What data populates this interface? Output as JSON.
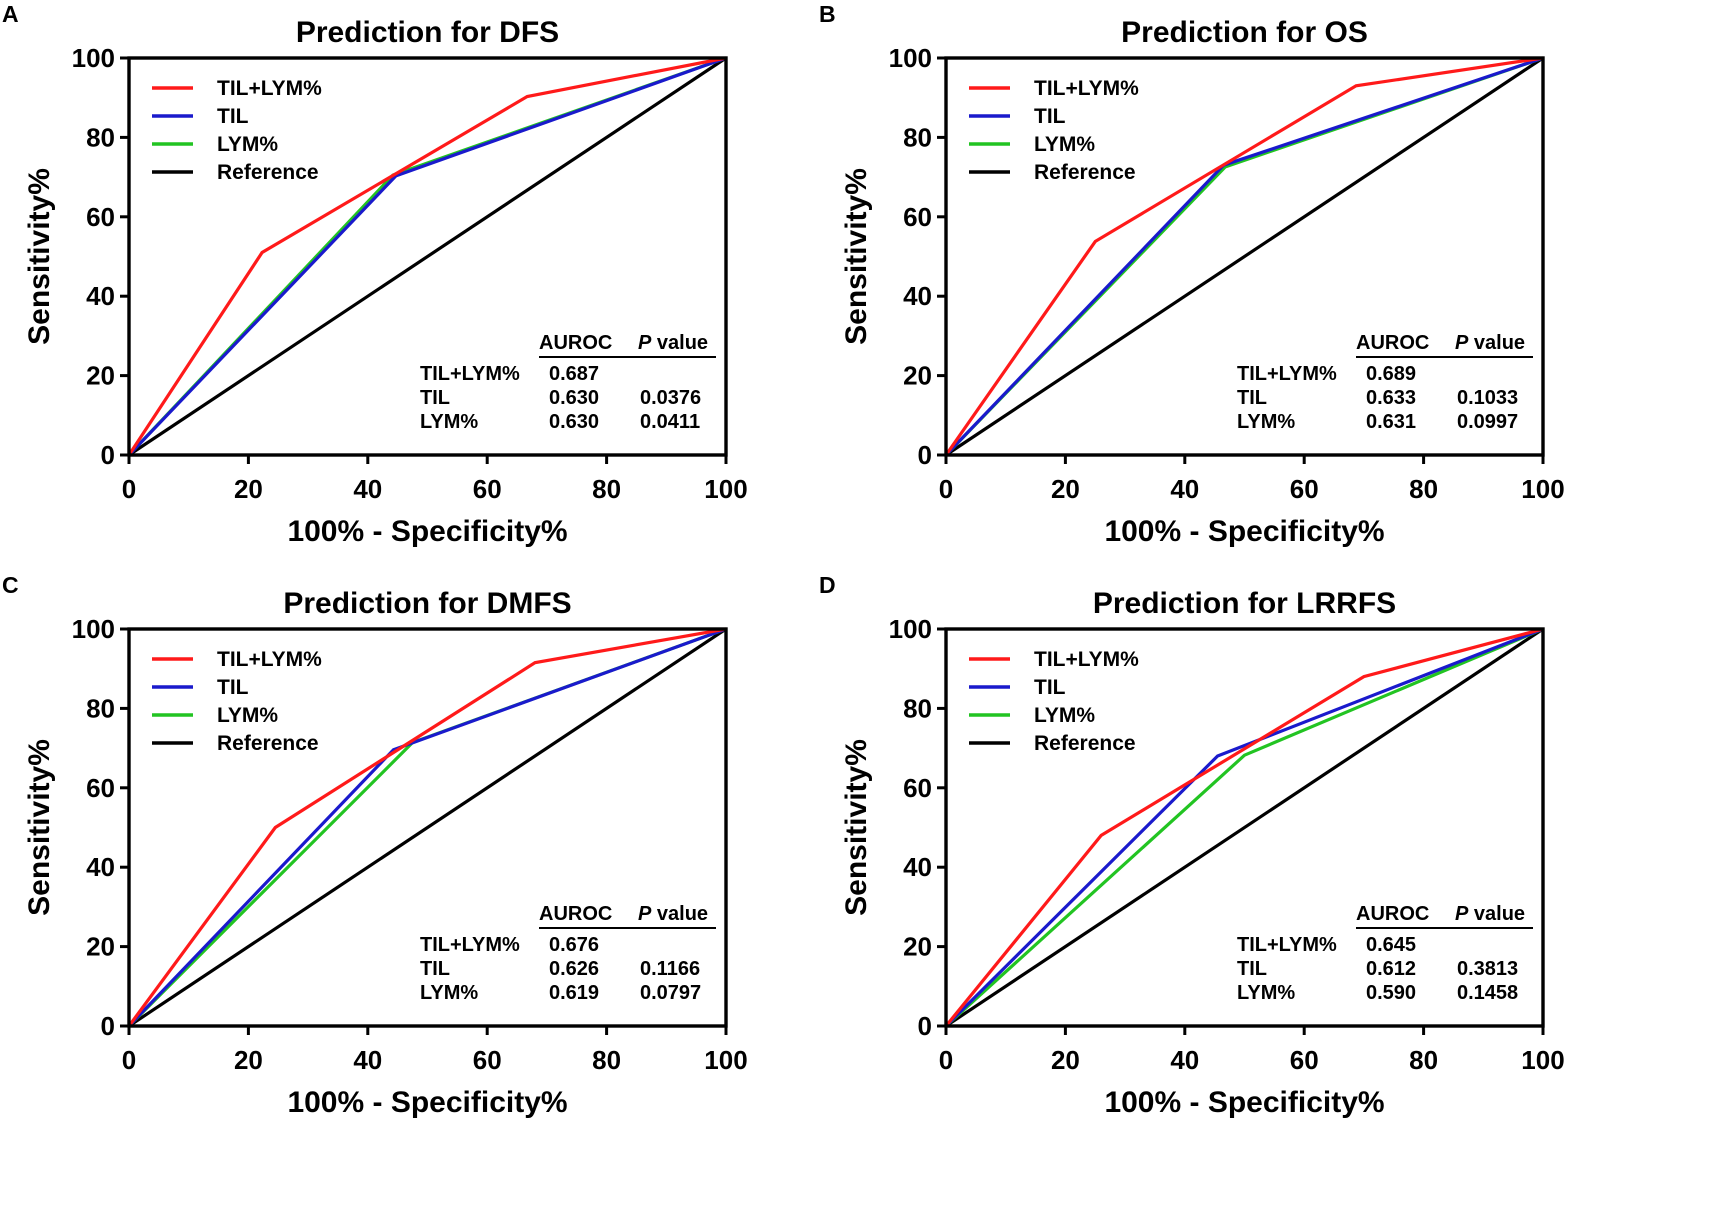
{
  "figure": {
    "x_tick_labels": [
      "0",
      "20",
      "40",
      "60",
      "80",
      "100"
    ],
    "y_tick_labels": [
      "0",
      "20",
      "40",
      "60",
      "80",
      "100"
    ]
  },
  "chart_data": [
    {
      "type": "line",
      "panel_label": "A",
      "title": "Prediction for DFS",
      "xlabel": "100% - Specificity%",
      "ylabel": "Sensitivity%",
      "xlim": [
        0,
        100
      ],
      "ylim": [
        0,
        100
      ],
      "grid": false,
      "legend_position": "top-left",
      "series": [
        {
          "name": "TIL+LYM%",
          "color": "#ff1a1a",
          "x": [
            0,
            22.3,
            66.7,
            100
          ],
          "y": [
            0,
            51,
            90.3,
            100
          ]
        },
        {
          "name": "TIL",
          "color": "#1a1acc",
          "x": [
            0,
            44.7,
            100
          ],
          "y": [
            0,
            70.3,
            100
          ]
        },
        {
          "name": "LYM%",
          "color": "#22c422",
          "x": [
            0,
            44.2,
            100
          ],
          "y": [
            0,
            70.5,
            100
          ]
        },
        {
          "name": "Reference",
          "color": "#000000",
          "x": [
            0,
            100
          ],
          "y": [
            0,
            100
          ]
        }
      ],
      "stats_table": {
        "headers": {
          "auroc": "AUROC",
          "p_italic": "P",
          "p_rest": " value"
        },
        "rows": [
          {
            "label": "TIL+LYM%",
            "auroc": "0.687",
            "p": ""
          },
          {
            "label": "TIL",
            "auroc": "0.630",
            "p": "0.0376"
          },
          {
            "label": "LYM%",
            "auroc": "0.630",
            "p": "0.0411"
          }
        ]
      }
    },
    {
      "type": "line",
      "panel_label": "B",
      "title": "Prediction for OS",
      "xlabel": "100% - Specificity%",
      "ylabel": "Sensitivity%",
      "xlim": [
        0,
        100
      ],
      "ylim": [
        0,
        100
      ],
      "grid": false,
      "legend_position": "top-left",
      "series": [
        {
          "name": "TIL+LYM%",
          "color": "#ff1a1a",
          "x": [
            0,
            25,
            68.7,
            100
          ],
          "y": [
            0,
            53.8,
            93,
            100
          ]
        },
        {
          "name": "TIL",
          "color": "#1a1acc",
          "x": [
            0,
            46.5,
            100
          ],
          "y": [
            0,
            73,
            100
          ]
        },
        {
          "name": "LYM%",
          "color": "#22c422",
          "x": [
            0,
            46.8,
            100
          ],
          "y": [
            0,
            72.6,
            100
          ]
        },
        {
          "name": "Reference",
          "color": "#000000",
          "x": [
            0,
            100
          ],
          "y": [
            0,
            100
          ]
        }
      ],
      "stats_table": {
        "headers": {
          "auroc": "AUROC",
          "p_italic": "P",
          "p_rest": " value"
        },
        "rows": [
          {
            "label": "TIL+LYM%",
            "auroc": "0.689",
            "p": ""
          },
          {
            "label": "TIL",
            "auroc": "0.633",
            "p": "0.1033"
          },
          {
            "label": "LYM%",
            "auroc": "0.631",
            "p": "0.0997"
          }
        ]
      }
    },
    {
      "type": "line",
      "panel_label": "C",
      "title": "Prediction for DMFS",
      "xlabel": "100% - Specificity%",
      "ylabel": "Sensitivity%",
      "xlim": [
        0,
        100
      ],
      "ylim": [
        0,
        100
      ],
      "grid": false,
      "legend_position": "top-left",
      "series": [
        {
          "name": "TIL+LYM%",
          "color": "#ff1a1a",
          "x": [
            0,
            24.5,
            68,
            100
          ],
          "y": [
            0,
            50,
            91.5,
            100
          ]
        },
        {
          "name": "TIL",
          "color": "#1a1acc",
          "x": [
            0,
            44.3,
            100
          ],
          "y": [
            0,
            69.6,
            100
          ]
        },
        {
          "name": "LYM%",
          "color": "#22c422",
          "x": [
            0,
            47.5,
            100
          ],
          "y": [
            0,
            71.4,
            100
          ]
        },
        {
          "name": "Reference",
          "color": "#000000",
          "x": [
            0,
            100
          ],
          "y": [
            0,
            100
          ]
        }
      ],
      "stats_table": {
        "headers": {
          "auroc": "AUROC",
          "p_italic": "P",
          "p_rest": " value"
        },
        "rows": [
          {
            "label": "TIL+LYM%",
            "auroc": "0.676",
            "p": ""
          },
          {
            "label": "TIL",
            "auroc": "0.626",
            "p": "0.1166"
          },
          {
            "label": "LYM%",
            "auroc": "0.619",
            "p": "0.0797"
          }
        ]
      }
    },
    {
      "type": "line",
      "panel_label": "D",
      "title": "Prediction for LRRFS",
      "xlabel": "100% - Specificity%",
      "ylabel": "Sensitivity%",
      "xlim": [
        0,
        100
      ],
      "ylim": [
        0,
        100
      ],
      "grid": false,
      "legend_position": "top-left",
      "series": [
        {
          "name": "TIL+LYM%",
          "color": "#ff1a1a",
          "x": [
            0,
            26,
            70,
            100
          ],
          "y": [
            0,
            48,
            88,
            100
          ]
        },
        {
          "name": "TIL",
          "color": "#1a1acc",
          "x": [
            0,
            45.5,
            100
          ],
          "y": [
            0,
            68,
            100
          ]
        },
        {
          "name": "LYM%",
          "color": "#22c422",
          "x": [
            0,
            50,
            100
          ],
          "y": [
            0,
            68.2,
            100
          ]
        },
        {
          "name": "Reference",
          "color": "#000000",
          "x": [
            0,
            100
          ],
          "y": [
            0,
            100
          ]
        }
      ],
      "stats_table": {
        "headers": {
          "auroc": "AUROC",
          "p_italic": "P",
          "p_rest": " value"
        },
        "rows": [
          {
            "label": "TIL+LYM%",
            "auroc": "0.645",
            "p": ""
          },
          {
            "label": "TIL",
            "auroc": "0.612",
            "p": "0.3813"
          },
          {
            "label": "LYM%",
            "auroc": "0.590",
            "p": "0.1458"
          }
        ]
      }
    }
  ]
}
